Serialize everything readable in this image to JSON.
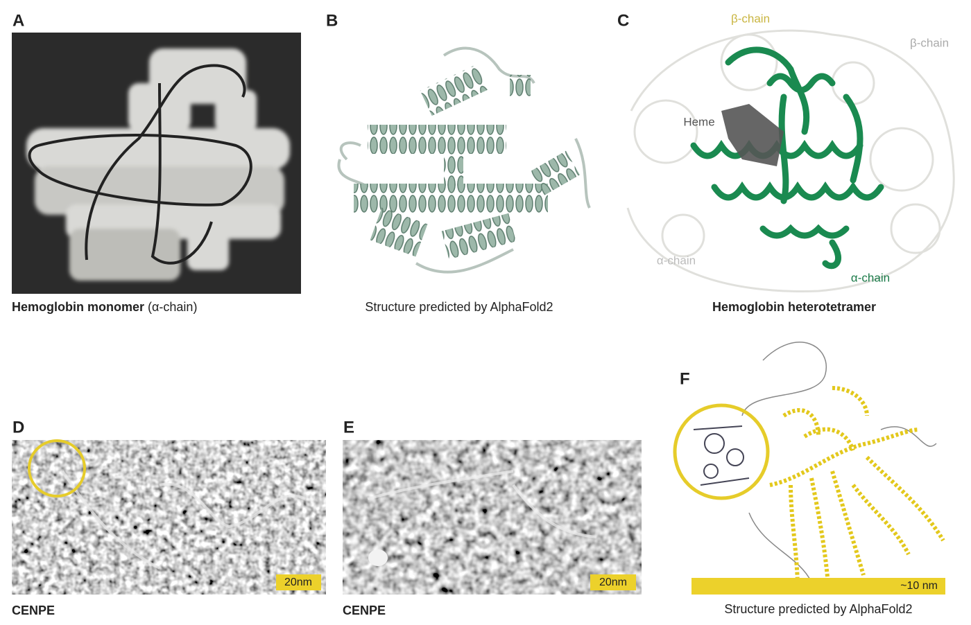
{
  "panels": {
    "A": {
      "label": "A",
      "caption_bold": "Hemoglobin monomer",
      "caption_rest": "(α-chain)"
    },
    "B": {
      "label": "B",
      "caption": "Structure predicted by AlphaFold2"
    },
    "C": {
      "label": "C",
      "caption": "Hemoglobin heterotetramer",
      "annotations": [
        "β-chain",
        "β-chain",
        "Heme",
        "α-chain",
        "α-chain"
      ]
    },
    "D": {
      "label": "D",
      "caption": "CENPE",
      "scale_bar": "20nm"
    },
    "E": {
      "label": "E",
      "caption": "CENPE",
      "scale_bar": "20nm"
    },
    "F": {
      "label": "F",
      "caption": "Structure predicted by AlphaFold2",
      "scale_bar": "~10 nm"
    }
  }
}
